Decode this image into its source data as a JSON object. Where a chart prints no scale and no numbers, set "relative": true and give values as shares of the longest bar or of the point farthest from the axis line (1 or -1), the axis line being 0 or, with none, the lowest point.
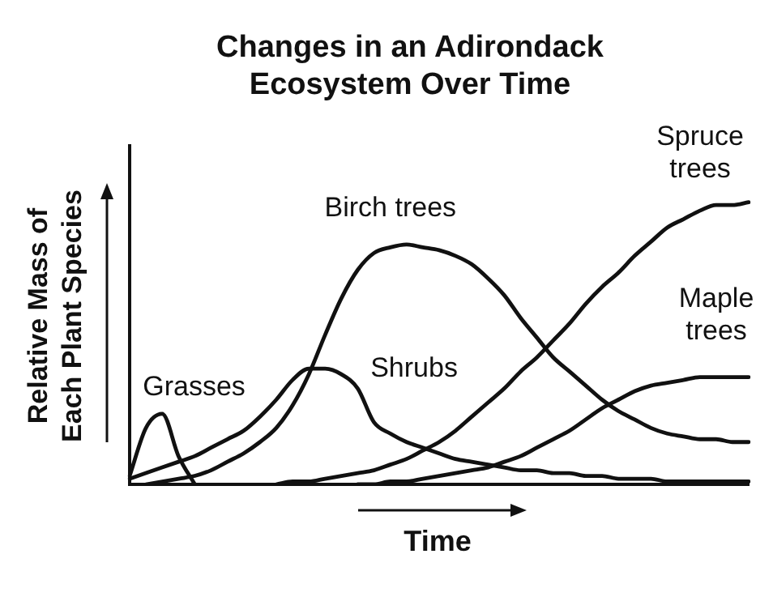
{
  "chart_data": {
    "type": "line",
    "title": "Changes in an Adirondack Ecosystem Over Time",
    "xlabel": "Time",
    "ylabel": "Relative Mass of Each Plant Species",
    "relative": true,
    "legend": false,
    "tick_labels": false,
    "grid": false,
    "marker": "none",
    "line_style": "solid",
    "categories": [
      null,
      null,
      null,
      null,
      null,
      null,
      null,
      null,
      null,
      null,
      null,
      null,
      null,
      null,
      null,
      null,
      null,
      null,
      null,
      null,
      null,
      null,
      null,
      null,
      null,
      null,
      null,
      null,
      null,
      null,
      null,
      null,
      null,
      null,
      null,
      null,
      null,
      null,
      null
    ],
    "series": [
      {
        "name": "Grasses",
        "color": "#111111",
        "values": [
          0.03,
          0.2,
          0.25,
          0.1,
          0,
          null,
          null,
          null,
          null,
          null,
          null,
          null,
          null,
          null,
          null,
          null,
          null,
          null,
          null,
          null,
          null,
          null,
          null,
          null,
          null,
          null,
          null,
          null,
          null,
          null,
          null,
          null,
          null,
          null,
          null,
          null,
          null,
          null,
          null
        ]
      },
      {
        "name": "Shrubs",
        "color": "#111111",
        "values": [
          0.02,
          0.04,
          0.06,
          0.08,
          0.1,
          0.13,
          0.16,
          0.19,
          0.24,
          0.3,
          0.37,
          0.41,
          0.41,
          0.39,
          0.34,
          0.22,
          0.18,
          0.15,
          0.13,
          0.11,
          0.09,
          0.08,
          0.07,
          0.06,
          0.05,
          0.05,
          0.04,
          0.04,
          0.03,
          0.03,
          0.02,
          0.02,
          0.02,
          0.01,
          0.01,
          0.01,
          0.01,
          0.01,
          0.01
        ]
      },
      {
        "name": "Birch trees",
        "color": "#111111",
        "values": [
          null,
          0,
          0.01,
          0.02,
          0.03,
          0.05,
          0.08,
          0.11,
          0.15,
          0.2,
          0.28,
          0.39,
          0.53,
          0.66,
          0.76,
          0.82,
          0.84,
          0.85,
          0.84,
          0.83,
          0.81,
          0.78,
          0.73,
          0.67,
          0.59,
          0.52,
          0.45,
          0.4,
          0.35,
          0.3,
          0.26,
          0.23,
          0.2,
          0.18,
          0.17,
          0.16,
          0.16,
          0.15,
          0.15
        ]
      },
      {
        "name": "Spruce trees",
        "color": "#111111",
        "values": [
          null,
          null,
          null,
          null,
          null,
          null,
          null,
          null,
          null,
          0,
          0.01,
          0.01,
          0.02,
          0.03,
          0.04,
          0.05,
          0.07,
          0.09,
          0.12,
          0.15,
          0.19,
          0.24,
          0.29,
          0.34,
          0.4,
          0.45,
          0.51,
          0.57,
          0.64,
          0.7,
          0.75,
          0.81,
          0.86,
          0.91,
          0.94,
          0.97,
          0.99,
          0.99,
          1
        ]
      },
      {
        "name": "Maple trees",
        "color": "#111111",
        "values": [
          null,
          null,
          null,
          null,
          null,
          null,
          null,
          null,
          null,
          null,
          null,
          null,
          null,
          null,
          0,
          0,
          0.01,
          0.01,
          0.02,
          0.03,
          0.04,
          0.05,
          0.06,
          0.08,
          0.1,
          0.13,
          0.16,
          0.19,
          0.23,
          0.27,
          0.3,
          0.33,
          0.35,
          0.36,
          0.37,
          0.38,
          0.38,
          0.38,
          0.38
        ]
      }
    ]
  }
}
